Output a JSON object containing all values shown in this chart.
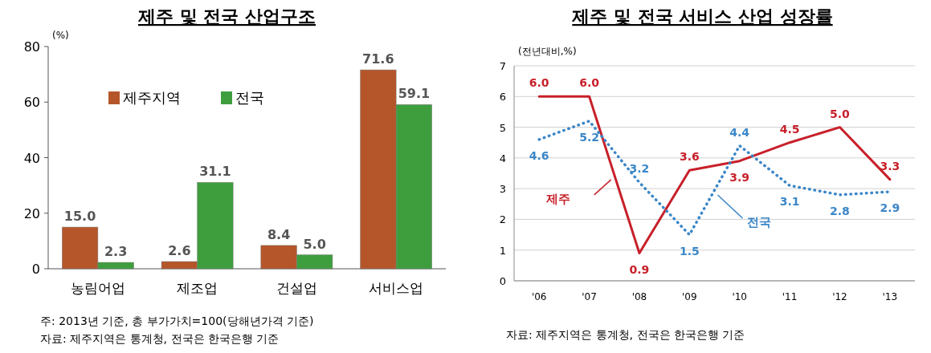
{
  "chart_data": [
    {
      "type": "bar",
      "title": "제주 및 전국 산업구조",
      "ylabel": "(%)",
      "categories": [
        "농림어업",
        "제조업",
        "건설업",
        "서비스업"
      ],
      "series": [
        {
          "name": "제주지역",
          "color": "#b5562a",
          "values": [
            15.0,
            2.6,
            8.4,
            71.6
          ],
          "value_labels": [
            "15.0",
            "2.6",
            "8.4",
            "71.6"
          ]
        },
        {
          "name": "전국",
          "color": "#3e9e3e",
          "values": [
            2.3,
            31.1,
            5.0,
            59.1
          ],
          "value_labels": [
            "2.3",
            "31.1",
            "5.0",
            "59.1"
          ]
        }
      ],
      "ylim": [
        0,
        80
      ],
      "yticks": [
        0,
        20,
        40,
        60,
        80
      ],
      "legend": "top left",
      "grid": false,
      "annotations": [
        "주: 2013년 기준, 총 부가가치=100(당해년가격 기준)",
        "자료: 제주지역은 통계청, 전국은 한국은행 기준"
      ]
    },
    {
      "type": "line",
      "title": "제주 및 전국 서비스 산업 성장률",
      "ylabel": "(전년대비,%)",
      "categories": [
        "'06",
        "'07",
        "'08",
        "'09",
        "'10",
        "'11",
        "'12",
        "'13"
      ],
      "series": [
        {
          "name": "제주",
          "color": "#c8202a",
          "line_style": "solid",
          "values": [
            6.0,
            6.0,
            0.9,
            3.6,
            3.9,
            4.5,
            5.0,
            3.3
          ],
          "value_labels": [
            "6.0",
            "6.0",
            "0.9",
            "3.6",
            "3.9",
            "4.5",
            "5.0",
            "3.3"
          ]
        },
        {
          "name": "전국",
          "color": "#3a86c8",
          "line_style": "dotted",
          "values": [
            4.6,
            5.2,
            3.2,
            1.5,
            4.4,
            3.1,
            2.8,
            2.9
          ],
          "value_labels": [
            "4.6",
            "5.2",
            "3.2",
            "1.5",
            "4.4",
            "3.1",
            "2.8",
            "2.9"
          ]
        }
      ],
      "ylim": [
        0,
        7
      ],
      "yticks": [
        0,
        1,
        2,
        3,
        4,
        5,
        6,
        7
      ],
      "grid": "y",
      "legend": false,
      "marker": "none",
      "annotations": [
        "자료: 제주지역은 통계청, 전국은 한국은행 기준"
      ]
    }
  ]
}
